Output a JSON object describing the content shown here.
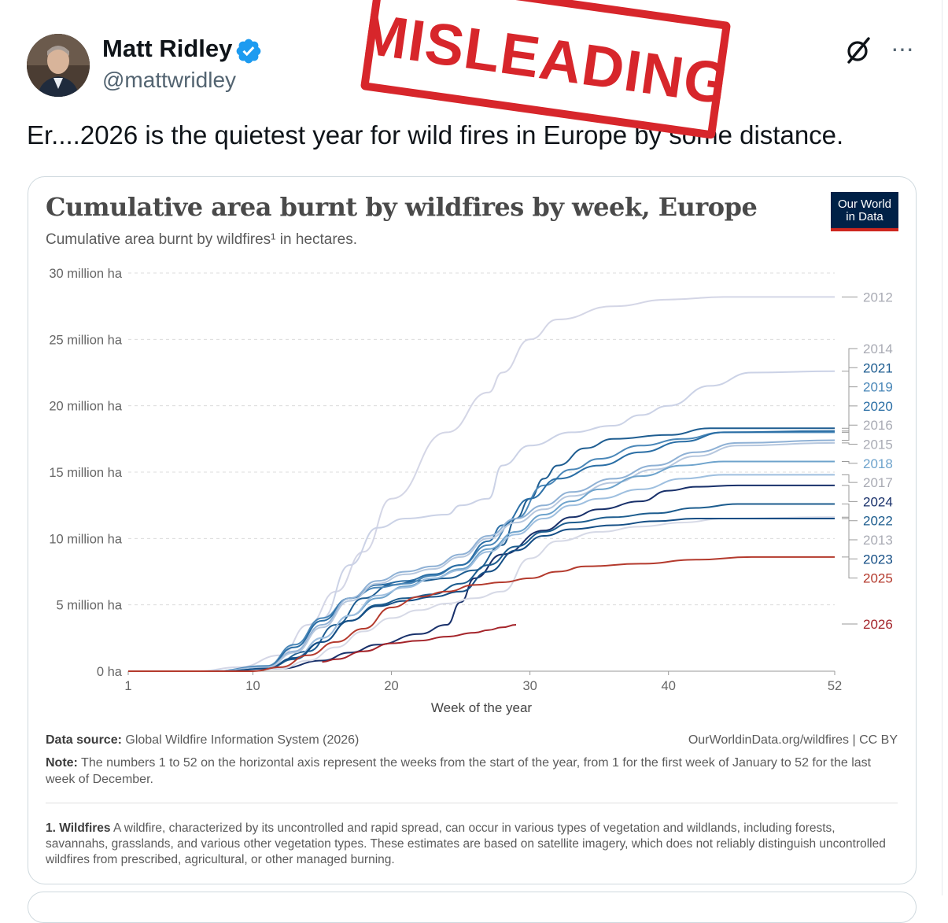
{
  "tweet": {
    "author_name": "Matt Ridley",
    "handle": "@mattwridley",
    "text": "Er....2026 is the quietest year for wild fires in Europe by some distance.",
    "more_label": "···"
  },
  "stamp": {
    "text": "MISLEADING",
    "color": "#d7262b"
  },
  "icons": {
    "verified": "verified-badge-icon",
    "grok": "grok-icon",
    "more": "more-options-icon",
    "logo": "our-world-in-data-logo"
  },
  "logo": {
    "line1": "Our World",
    "line2": "in Data"
  },
  "colors": {
    "accent_blue": "#1d9bf0",
    "owid_navy": "#002147",
    "owid_red": "#ce261e",
    "series_2026": "#a4242a",
    "series_2025": "#b43a2d"
  },
  "footer": {
    "source_label": "Data source:",
    "source_text": "Global Wildfire Information System (2026)",
    "url_text": "OurWorldinData.org/wildfires | CC BY",
    "note_label": "Note:",
    "note_text": "The numbers 1 to 52 on the horizontal axis represent the weeks from the start of the year, from 1 for the first week of January to 52 for the last week of December.",
    "footnote_label": "1. Wildfires",
    "footnote_text": "A wildfire, characterized by its uncontrolled and rapid spread, can occur in various types of vegetation and wildlands, including forests, savannahs, grasslands, and various other vegetation types. These estimates are based on satellite imagery, which does not reliably distinguish uncontrolled wildfires from prescribed, agricultural, or other managed burning."
  },
  "chart_data": {
    "type": "line",
    "title": "Cumulative area burnt by wildfires by week, Europe",
    "subtitle": "Cumulative area burnt by wildfires¹ in hectares.",
    "xlabel": "Week of the year",
    "ylabel": "",
    "xlim": [
      1,
      52
    ],
    "ylim": [
      0,
      30000000
    ],
    "x_ticks": [
      1,
      10,
      20,
      30,
      40,
      52
    ],
    "y_ticks": [
      {
        "value": 0,
        "label": "0 ha"
      },
      {
        "value": 5000000,
        "label": "5 million ha"
      },
      {
        "value": 10000000,
        "label": "10 million ha"
      },
      {
        "value": 15000000,
        "label": "15 million ha"
      },
      {
        "value": 20000000,
        "label": "20 million ha"
      },
      {
        "value": 25000000,
        "label": "25 million ha"
      },
      {
        "value": 30000000,
        "label": "30 million ha"
      }
    ],
    "grid": "horizontal dashed",
    "legend": "right, labels at line ends",
    "series": [
      {
        "name": "2012",
        "color": "#d4d6e6",
        "x": [
          1,
          6,
          9,
          12,
          14,
          16,
          18,
          20,
          24,
          27,
          28,
          30,
          32,
          36,
          40,
          44,
          52
        ],
        "values": [
          0,
          0,
          300000,
          1200000,
          3500000,
          6000000,
          9000000,
          13000000,
          18000000,
          21000000,
          22500000,
          25000000,
          26500000,
          27500000,
          28000000,
          28200000,
          28200000
        ]
      },
      {
        "name": "2014",
        "color": "#cbd2e6",
        "x": [
          1,
          8,
          11,
          13,
          15,
          17,
          19,
          21,
          24,
          25,
          27,
          28,
          30,
          33,
          36,
          38,
          40,
          43,
          46,
          52
        ],
        "values": [
          0,
          0,
          300000,
          1500000,
          4000000,
          8000000,
          10800000,
          11500000,
          11800000,
          12500000,
          13000000,
          15500000,
          17000000,
          18000000,
          18500000,
          19300000,
          20000000,
          21500000,
          22500000,
          22600000
        ]
      },
      {
        "name": "2021",
        "color": "#1e5d91",
        "x": [
          1,
          7,
          11,
          14,
          16,
          18,
          20,
          22,
          24,
          26,
          28,
          29,
          30,
          31,
          32,
          34,
          36,
          40,
          43,
          52
        ],
        "values": [
          0,
          0,
          300000,
          1500000,
          3500000,
          5500000,
          6500000,
          6800000,
          7000000,
          7600000,
          9500000,
          11500000,
          13000000,
          14500000,
          15500000,
          16800000,
          17500000,
          17800000,
          18300000,
          18300000
        ]
      },
      {
        "name": "2019",
        "color": "#4a87b8",
        "x": [
          1,
          7,
          11,
          13,
          15,
          17,
          19,
          21,
          23,
          25,
          27,
          29,
          31,
          33,
          35,
          38,
          41,
          44,
          52
        ],
        "values": [
          0,
          0,
          400000,
          2000000,
          4000000,
          5500000,
          6300000,
          6600000,
          7200000,
          8000000,
          9500000,
          11500000,
          14000000,
          15200000,
          16000000,
          17000000,
          17500000,
          18000000,
          18000000
        ]
      },
      {
        "name": "2020",
        "color": "#2a6ea5",
        "x": [
          1,
          7,
          11,
          13,
          15,
          17,
          19,
          21,
          23,
          25,
          27,
          28,
          30,
          32,
          35,
          38,
          41,
          44,
          52
        ],
        "values": [
          0,
          0,
          300000,
          1800000,
          3800000,
          5500000,
          6500000,
          6800000,
          7300000,
          8000000,
          9800000,
          11000000,
          13000000,
          14500000,
          15500000,
          16500000,
          17300000,
          18000000,
          18100000
        ]
      },
      {
        "name": "2016",
        "color": "#8fb1d5",
        "x": [
          1,
          7,
          11,
          13,
          15,
          17,
          19,
          21,
          23,
          25,
          27,
          29,
          31,
          33,
          36,
          39,
          42,
          45,
          52
        ],
        "values": [
          0,
          0,
          300000,
          1500000,
          3500000,
          5500000,
          6800000,
          7500000,
          7900000,
          8800000,
          10200000,
          11500000,
          12500000,
          13500000,
          14500000,
          15500000,
          16500000,
          17200000,
          17400000
        ]
      },
      {
        "name": "2015",
        "color": "#b6c7de",
        "x": [
          1,
          7,
          11,
          13,
          15,
          17,
          19,
          21,
          23,
          25,
          27,
          29,
          31,
          33,
          36,
          39,
          42,
          45,
          52
        ],
        "values": [
          0,
          0,
          250000,
          1400000,
          3300000,
          5300000,
          6600000,
          7300000,
          7700000,
          8600000,
          10000000,
          11200000,
          12200000,
          13200000,
          14200000,
          15200000,
          16200000,
          17000000,
          17200000
        ]
      },
      {
        "name": "2018",
        "color": "#6ea3cc",
        "x": [
          1,
          7,
          11,
          13,
          15,
          17,
          19,
          21,
          23,
          25,
          27,
          29,
          31,
          33,
          35,
          38,
          41,
          44,
          52
        ],
        "values": [
          0,
          0,
          200000,
          1000000,
          2500000,
          4200000,
          5500000,
          6400000,
          7000000,
          7700000,
          9200000,
          10500000,
          11800000,
          12800000,
          13700000,
          14700000,
          15500000,
          15800000,
          15800000
        ]
      },
      {
        "name": "2017",
        "color": "#9ebfdf",
        "x": [
          1,
          7,
          11,
          13,
          15,
          17,
          19,
          21,
          23,
          25,
          27,
          29,
          31,
          33,
          35,
          38,
          41,
          44,
          52
        ],
        "values": [
          0,
          0,
          200000,
          1000000,
          2500000,
          4200000,
          5700000,
          6300000,
          7000000,
          7600000,
          9000000,
          10300000,
          11500000,
          12500000,
          13000000,
          13700000,
          14500000,
          14800000,
          14800000
        ]
      },
      {
        "name": "2024",
        "color": "#18306a",
        "x": [
          1,
          9,
          12,
          15,
          17,
          19,
          22,
          24,
          25,
          26,
          28,
          31,
          33,
          35,
          38,
          40,
          42,
          45,
          52
        ],
        "values": [
          0,
          0,
          200000,
          800000,
          1400000,
          2000000,
          2800000,
          3500000,
          5200000,
          7000000,
          8800000,
          10600000,
          11600000,
          12200000,
          12800000,
          13600000,
          13900000,
          14000000,
          14000000
        ]
      },
      {
        "name": "2022",
        "color": "#1c5c8e",
        "x": [
          1,
          8,
          11,
          13,
          15,
          17,
          19,
          21,
          23,
          25,
          27,
          29,
          31,
          33,
          36,
          39,
          42,
          45,
          52
        ],
        "values": [
          0,
          0,
          200000,
          900000,
          2200000,
          3800000,
          5000000,
          5500000,
          5800000,
          6600000,
          8000000,
          9400000,
          10500000,
          11200000,
          11600000,
          11900000,
          12300000,
          12600000,
          12600000
        ]
      },
      {
        "name": "2013",
        "color": "#d6d9e6",
        "x": [
          1,
          9,
          12,
          14,
          16,
          18,
          20,
          22,
          24,
          26,
          28,
          30,
          32,
          35,
          38,
          41,
          44,
          52
        ],
        "values": [
          0,
          0,
          200000,
          800000,
          1800000,
          3000000,
          4000000,
          4600000,
          5100000,
          5500000,
          6000000,
          8500000,
          9800000,
          10500000,
          10900000,
          11200000,
          11500000,
          11600000
        ]
      },
      {
        "name": "2023",
        "color": "#144e85",
        "x": [
          1,
          8,
          11,
          13,
          15,
          17,
          19,
          21,
          23,
          25,
          27,
          29,
          31,
          33,
          36,
          39,
          42,
          45,
          52
        ],
        "values": [
          0,
          0,
          200000,
          1000000,
          2200000,
          3800000,
          4900000,
          5300000,
          5600000,
          6000000,
          7500000,
          9100000,
          10200000,
          10700000,
          11000000,
          11300000,
          11500000,
          11500000,
          11500000
        ]
      },
      {
        "name": "2025",
        "color": "#b43a2d",
        "x": [
          1,
          10,
          12,
          14,
          16,
          18,
          20,
          22,
          24,
          26,
          28,
          30,
          32,
          34,
          38,
          42,
          46,
          52
        ],
        "values": [
          0,
          0,
          300000,
          1200000,
          2200000,
          3200000,
          4800000,
          5600000,
          6000000,
          6500000,
          6700000,
          7000000,
          7500000,
          7900000,
          8100000,
          8400000,
          8600000,
          8600000
        ]
      },
      {
        "name": "2026",
        "color": "#a4242a",
        "x": [
          15,
          16,
          18,
          20,
          22,
          24,
          26,
          27,
          28,
          29
        ],
        "values": [
          700000,
          900000,
          1500000,
          2100000,
          2300000,
          2600000,
          2900000,
          3100000,
          3300000,
          3500000
        ]
      }
    ]
  }
}
